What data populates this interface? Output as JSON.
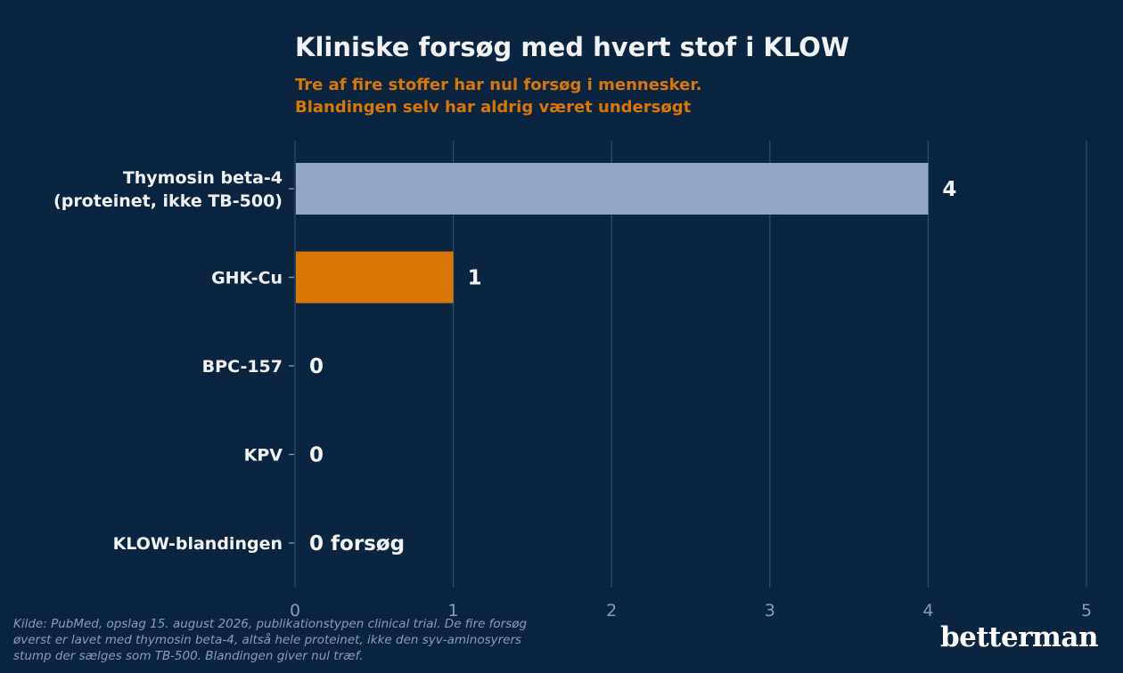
{
  "title": "Kliniske forsøg med hvert stof i KLOW",
  "subtitle": [
    "Tre af fire stoffer har nul forsøg i mennesker.",
    "Blandingen selv har aldrig været undersøgt"
  ],
  "footnote": [
    "Kilde: PubMed, opslag 15. august 2026, publikationstypen clinical trial. De fire forsøg",
    "øverst er lavet med thymosin beta-4, altså hele proteinet, ikke den syv-aminosyrers",
    "stump der sælges som TB-500. Blandingen giver nul træf."
  ],
  "logo": "betterman",
  "colors": {
    "background": "#0b2440",
    "grid": "#2a4a70",
    "bar_thymosin": "#94a6c1",
    "bar_ghk": "#d97706",
    "label_text": "#f2f2f2",
    "tick_text": "#8a9bb5"
  },
  "chart_data": {
    "type": "bar",
    "orientation": "horizontal",
    "categories": [
      [
        "Thymosin beta-4",
        "(proteinet, ikke TB-500)"
      ],
      [
        "GHK-Cu"
      ],
      [
        "BPC-157"
      ],
      [
        "KPV"
      ],
      [
        "KLOW-blandingen"
      ]
    ],
    "values": [
      4,
      1,
      0,
      0,
      0
    ],
    "value_labels": [
      "4",
      "1",
      "0",
      "0",
      "0 forsøg"
    ],
    "bar_colors": [
      "#94a6c1",
      "#d97706",
      "#94a6c1",
      "#94a6c1",
      "#94a6c1"
    ],
    "xlim": [
      0,
      5
    ],
    "xticks": [
      0,
      1,
      2,
      3,
      4,
      5
    ],
    "grid": "vertical"
  }
}
